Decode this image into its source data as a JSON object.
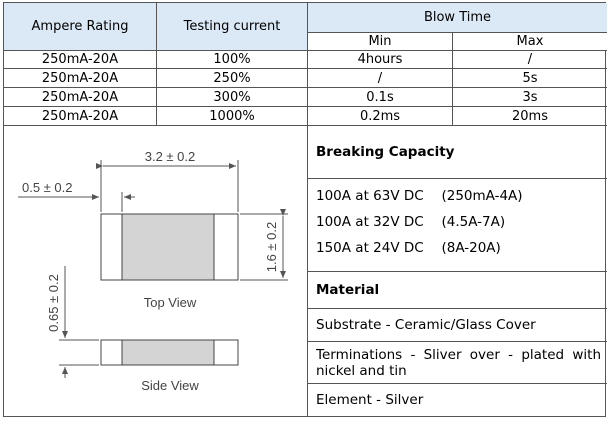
{
  "table": {
    "headers": {
      "ampere_rating": "Ampere Rating",
      "testing_current": "Testing current",
      "blow_time": "Blow Time",
      "min": "Min",
      "max": "Max"
    },
    "rows": [
      {
        "rating": "250mA-20A",
        "current": "100%",
        "min": "4hours",
        "max": "/"
      },
      {
        "rating": "250mA-20A",
        "current": "250%",
        "min": "/",
        "max": "5s"
      },
      {
        "rating": "250mA-20A",
        "current": "300%",
        "min": "0.1s",
        "max": "3s"
      },
      {
        "rating": "250mA-20A",
        "current": "1000%",
        "min": "0.2ms",
        "max": "20ms"
      }
    ]
  },
  "drawing": {
    "length_dim": "3.2 ± 0.2",
    "term_dim": "0.5 ± 0.2",
    "width_dim": "1.6 ± 0.2",
    "height_dim": "0.65 ± 0.2",
    "top_view": "Top View",
    "side_view": "Side View",
    "body_color": "#d4d4d4"
  },
  "specs": {
    "breaking_title": "Breaking Capacity",
    "breaking_lines": [
      "100A at 63V DC 　(250mA-4A)",
      "100A at 32V DC 　(4.5A-7A)",
      "150A at 24V DC 　(8A-20A)"
    ],
    "material_title": "Material",
    "substrate": "Substrate - Ceramic/Glass Cover",
    "terminations": "Terminations - Sliver over - plated with nickel and tin",
    "element": "Element - Silver"
  }
}
